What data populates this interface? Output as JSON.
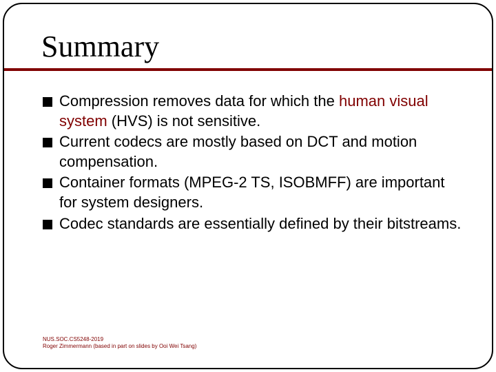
{
  "slide": {
    "title": "Summary",
    "title_fontsize": 44,
    "title_font": "Times New Roman",
    "underline_color": "#800000",
    "background_color": "#ffffff",
    "frame_border_color": "#000000",
    "frame_border_radius": 28,
    "bullets": [
      {
        "pre": "Compression removes data for which the ",
        "highlight": "human visual system",
        "post": " (HVS) is not sensitive."
      },
      {
        "pre": "Current codecs are mostly based on DCT and motion compensation.",
        "highlight": "",
        "post": ""
      },
      {
        "pre": "Container formats (MPEG-2 TS, ISOBMFF) are important for system designers.",
        "highlight": "",
        "post": ""
      },
      {
        "pre": "Codec standards are essentially defined by their bitstreams.",
        "highlight": "",
        "post": ""
      }
    ],
    "bullet_marker_color": "#000000",
    "bullet_fontsize": 22,
    "highlight_color": "#800000"
  },
  "footer": {
    "line1": "NUS.SOC.CS5248-2019",
    "line2": "Roger Zimmermann (based in part on slides by Ooi Wei Tsang)",
    "color": "#800000",
    "fontsize": 8
  }
}
